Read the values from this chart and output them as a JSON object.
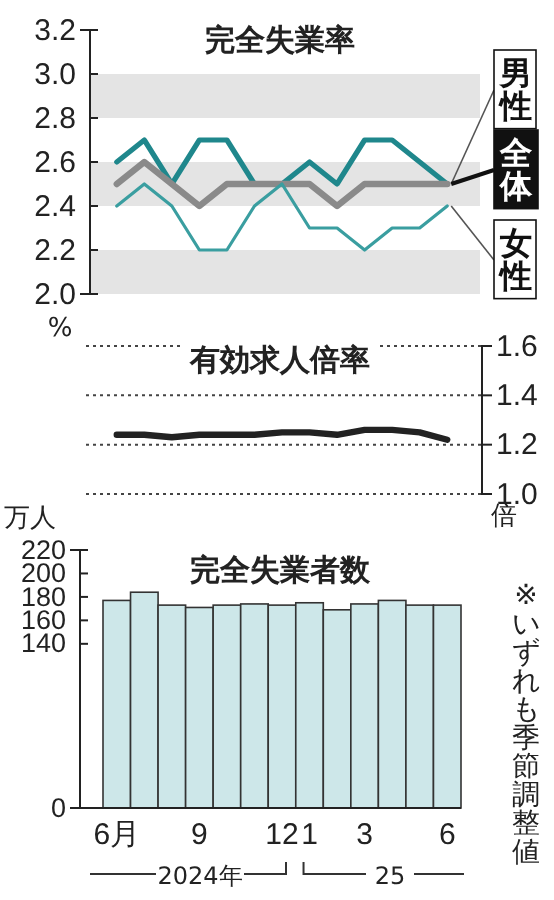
{
  "chart_data": [
    {
      "type": "line",
      "title": "完全失業率",
      "ylabel": "%",
      "categories": [
        null,
        null,
        null,
        null,
        null,
        null,
        null,
        null,
        null,
        null,
        null,
        null,
        null
      ],
      "series": [
        {
          "name": "男性",
          "color": "#1f878c",
          "values": [
            2.6,
            2.7,
            2.5,
            2.7,
            2.7,
            2.5,
            2.5,
            2.6,
            2.5,
            2.7,
            2.7,
            2.6,
            2.5
          ]
        },
        {
          "name": "全体",
          "color": "#8a8a8a",
          "values": [
            2.5,
            2.6,
            2.5,
            2.4,
            2.5,
            2.5,
            2.5,
            2.5,
            2.4,
            2.5,
            2.5,
            2.5,
            2.5
          ]
        },
        {
          "name": "女性",
          "color": "#3a9ea0",
          "values": [
            2.4,
            2.5,
            2.4,
            2.2,
            2.2,
            2.4,
            2.5,
            2.3,
            2.3,
            2.2,
            2.3,
            2.3,
            2.4
          ]
        }
      ],
      "ylim": [
        2.0,
        3.2
      ],
      "yticks": [
        {
          "value": 2.0,
          "label": "2.0"
        },
        2.2,
        2.4,
        2.6,
        2.8,
        {
          "value": 3.0,
          "label": "3.0"
        },
        3.2
      ],
      "bands": [
        {
          "axis": "y",
          "from": 2.0,
          "to": 2.2,
          "color": "#e4e4e4"
        },
        {
          "axis": "y",
          "from": 2.4,
          "to": 2.6,
          "color": "#e4e4e4"
        },
        {
          "axis": "y",
          "from": 2.8,
          "to": 3.0,
          "color": "#e4e4e4"
        }
      ],
      "tick_labels": "y"
    },
    {
      "type": "line",
      "title": "有効求人倍率",
      "ylabel": "倍",
      "categories": [
        null,
        null,
        null,
        null,
        null,
        null,
        null,
        null,
        null,
        null,
        null,
        null,
        null
      ],
      "series": [
        {
          "color": "#222222",
          "values": [
            1.24,
            1.24,
            1.23,
            1.24,
            1.24,
            1.24,
            1.25,
            1.25,
            1.24,
            1.26,
            1.26,
            1.25,
            1.22
          ]
        }
      ],
      "ylim": [
        1.0,
        1.6
      ],
      "yticks": [
        {
          "value": 1.0,
          "label": "1.0"
        },
        1.2,
        1.4,
        1.6
      ],
      "grid": "y",
      "tick_labels": "y"
    },
    {
      "type": "bar",
      "title": "完全失業者数",
      "ylabel": "万人",
      "categories": [
        "6月",
        null,
        null,
        "9",
        null,
        null,
        "12",
        "1",
        null,
        "3",
        null,
        null,
        "6"
      ],
      "values": [
        177,
        184,
        173,
        171,
        173,
        174,
        173,
        175,
        169,
        174,
        177,
        173,
        173
      ],
      "color": "#cde7e9",
      "ylim": [
        0,
        220
      ],
      "yticks": [
        0,
        140,
        160,
        180,
        200,
        220
      ],
      "annotations": [
        "2024年",
        "25",
        "※いずれも季節調整値"
      ]
    }
  ]
}
